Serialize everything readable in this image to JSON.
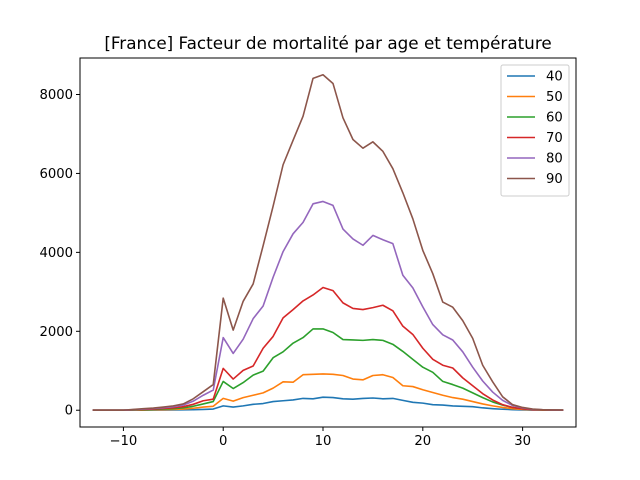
{
  "chart_data": {
    "type": "line",
    "title": "[France] Facteur de mortalité par age et température",
    "xlabel": "",
    "ylabel": "",
    "xlim": [
      -14.35,
      35.35
    ],
    "ylim": [
      -425,
      8925
    ],
    "xticks": [
      -10,
      0,
      10,
      20,
      30
    ],
    "xtick_labels": [
      "−10",
      "0",
      "10",
      "20",
      "30"
    ],
    "yticks": [
      0,
      2000,
      4000,
      6000,
      8000
    ],
    "ytick_labels": [
      "0",
      "2000",
      "4000",
      "6000",
      "8000"
    ],
    "grid": false,
    "legend_position": "top-right",
    "x": [
      -13,
      -12,
      -11,
      -10,
      -9,
      -8,
      -7,
      -6,
      -5,
      -4,
      -3,
      -2,
      -1,
      0,
      1,
      2,
      3,
      4,
      5,
      6,
      7,
      8,
      9,
      10,
      11,
      12,
      13,
      14,
      15,
      16,
      17,
      18,
      19,
      20,
      21,
      22,
      23,
      24,
      25,
      26,
      27,
      28,
      29,
      30,
      31,
      32,
      33,
      34
    ],
    "series": [
      {
        "name": "40",
        "color": "#1f77b4",
        "values": [
          0,
          0,
          0,
          0,
          0,
          0,
          5,
          5,
          8,
          10,
          15,
          20,
          30,
          110,
          80,
          110,
          150,
          170,
          220,
          240,
          260,
          300,
          290,
          330,
          320,
          290,
          280,
          300,
          310,
          290,
          300,
          250,
          200,
          180,
          140,
          130,
          110,
          100,
          90,
          60,
          40,
          25,
          15,
          8,
          5,
          3,
          2,
          1
        ]
      },
      {
        "name": "50",
        "color": "#ff7f0e",
        "values": [
          0,
          0,
          0,
          0,
          0,
          5,
          10,
          15,
          20,
          30,
          50,
          80,
          100,
          300,
          230,
          320,
          380,
          440,
          560,
          720,
          710,
          900,
          910,
          920,
          910,
          880,
          790,
          770,
          880,
          900,
          830,
          620,
          600,
          520,
          450,
          380,
          320,
          280,
          220,
          160,
          110,
          70,
          40,
          20,
          10,
          5,
          3,
          2
        ]
      },
      {
        "name": "60",
        "color": "#2ca02c",
        "values": [
          0,
          0,
          0,
          0,
          5,
          10,
          20,
          30,
          40,
          60,
          100,
          160,
          220,
          730,
          550,
          700,
          890,
          990,
          1330,
          1480,
          1700,
          1840,
          2060,
          2060,
          1970,
          1790,
          1780,
          1770,
          1790,
          1770,
          1670,
          1490,
          1290,
          1090,
          960,
          730,
          650,
          560,
          440,
          320,
          210,
          130,
          70,
          35,
          15,
          8,
          4,
          2
        ]
      },
      {
        "name": "70",
        "color": "#d62728",
        "values": [
          0,
          0,
          0,
          0,
          10,
          20,
          30,
          45,
          60,
          90,
          150,
          240,
          280,
          1060,
          790,
          1010,
          1120,
          1570,
          1870,
          2340,
          2550,
          2770,
          2920,
          3110,
          3030,
          2720,
          2580,
          2550,
          2600,
          2660,
          2520,
          2130,
          1920,
          1570,
          1290,
          1140,
          1070,
          820,
          620,
          420,
          260,
          140,
          70,
          35,
          15,
          8,
          4,
          2
        ]
      },
      {
        "name": "80",
        "color": "#9467bd",
        "values": [
          0,
          0,
          0,
          0,
          15,
          30,
          45,
          65,
          90,
          130,
          230,
          380,
          510,
          1840,
          1440,
          1800,
          2320,
          2640,
          3370,
          4020,
          4470,
          4760,
          5230,
          5290,
          5190,
          4590,
          4340,
          4180,
          4430,
          4320,
          4220,
          3420,
          3100,
          2620,
          2170,
          1910,
          1780,
          1480,
          1090,
          740,
          460,
          250,
          120,
          60,
          25,
          12,
          6,
          3
        ]
      },
      {
        "name": "90",
        "color": "#8c564b",
        "values": [
          0,
          0,
          0,
          0,
          20,
          40,
          55,
          80,
          110,
          160,
          290,
          470,
          650,
          2840,
          2030,
          2760,
          3200,
          4170,
          5170,
          6220,
          6840,
          7450,
          8410,
          8500,
          8280,
          7410,
          6860,
          6640,
          6800,
          6560,
          6120,
          5510,
          4850,
          4050,
          3460,
          2740,
          2610,
          2270,
          1820,
          1140,
          720,
          340,
          140,
          70,
          30,
          15,
          8,
          4
        ]
      }
    ]
  }
}
